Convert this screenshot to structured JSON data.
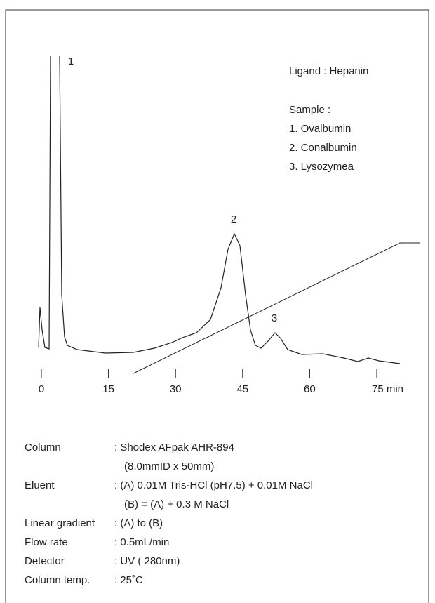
{
  "legend": {
    "ligand": "Ligand : Hepanin",
    "sample_heading": "Sample :",
    "samples": [
      "1. Ovalbumin",
      "2. Conalbumin",
      "3. Lysozymea"
    ]
  },
  "peak_labels": [
    "1",
    "2",
    "3"
  ],
  "x_axis": {
    "ticks": [
      "0",
      "15",
      "30",
      "45",
      "60",
      "75 min"
    ]
  },
  "conditions": [
    {
      "label": "Column",
      "lines": [
        ": Shodex AFpak AHR-894",
        "(8.0mmID x 50mm)"
      ]
    },
    {
      "label": "Eluent",
      "lines": [
        ": (A) 0.01M Tris-HCl (pH7.5) + 0.01M NaCl",
        "(B) = (A) + 0.3 M NaCl"
      ]
    },
    {
      "label": "Linear gradient",
      "lines": [
        ": (A) to (B)"
      ]
    },
    {
      "label": "Flow rate",
      "lines": [
        ": 0.5mL/min"
      ]
    },
    {
      "label": "Detector",
      "lines": [
        ": UV ( 280nm)"
      ]
    },
    {
      "label": "Column temp.",
      "lines": [
        ": 25˚C"
      ]
    }
  ]
}
